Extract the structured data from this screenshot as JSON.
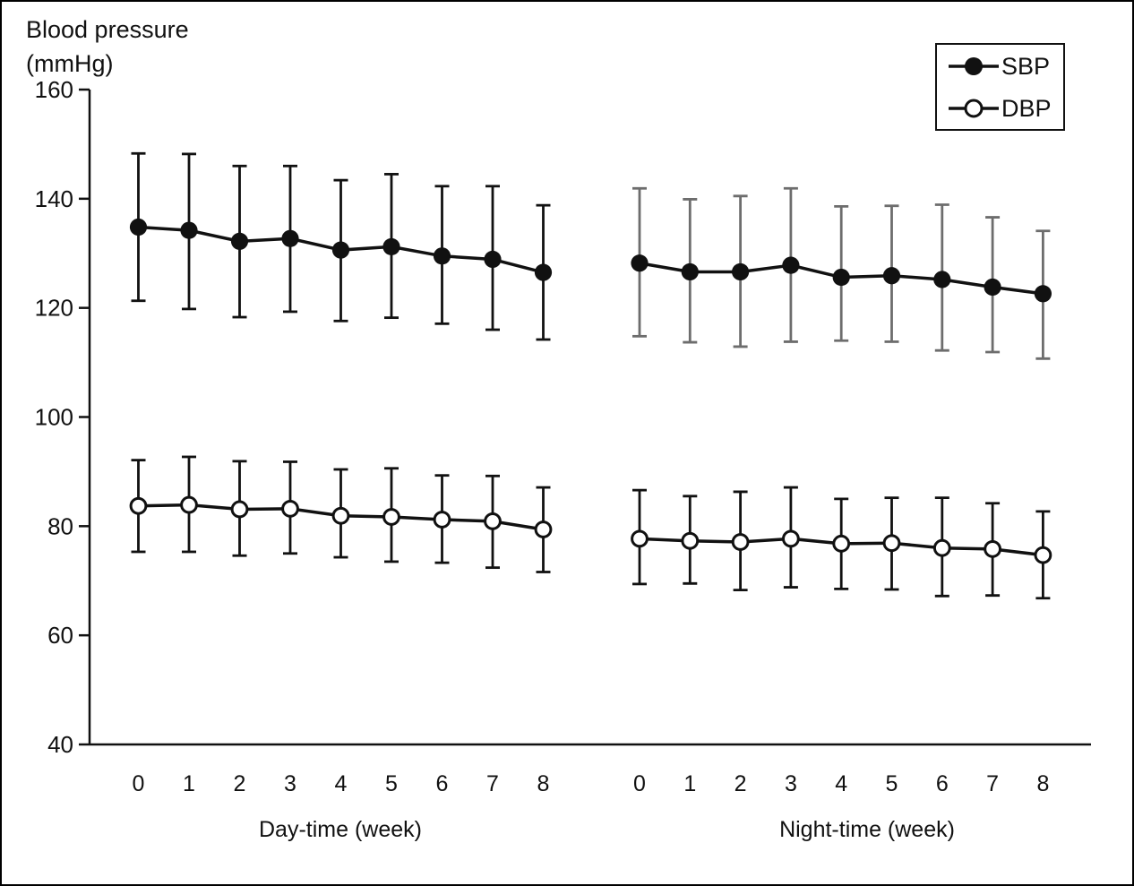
{
  "figure": {
    "title_line1": "Blood pressure",
    "title_line2": "(mmHg)"
  },
  "colors": {
    "axis": "#111111",
    "series_line": "#111111",
    "day_errorbar": "#111111",
    "night_sbp_errorbar": "#6d6d6d",
    "night_dbp_errorbar": "#111111",
    "marker_fill_sbp": "#111111",
    "marker_fill_dbp": "#ffffff",
    "background": "#ffffff"
  },
  "legend": {
    "items": [
      {
        "label": "SBP",
        "marker": "filled-circle"
      },
      {
        "label": "DBP",
        "marker": "open-circle"
      }
    ]
  },
  "chart_data": {
    "type": "line",
    "title": "Blood pressure (mmHg)",
    "ylabel": "Blood pressure (mmHg)",
    "ylim": [
      40,
      160
    ],
    "yticks": [
      160,
      140,
      120,
      100,
      80,
      60,
      40
    ],
    "x_tick_labels": [
      "0",
      "1",
      "2",
      "3",
      "4",
      "5",
      "6",
      "7",
      "8"
    ],
    "grid": false,
    "legend_position": "top-right",
    "error_bars": true,
    "groups": [
      {
        "label": "Day-time (week)",
        "series": [
          {
            "name": "SBP",
            "marker": "filled-circle",
            "errorbar_color_key": "day_errorbar",
            "values": [
              134.8,
              134.2,
              132.2,
              132.7,
              130.6,
              131.2,
              129.5,
              128.9,
              126.5
            ],
            "upper": [
              148.3,
              148.2,
              146.0,
              146.0,
              143.4,
              144.5,
              142.3,
              142.3,
              138.8
            ],
            "lower": [
              121.3,
              119.8,
              118.3,
              119.3,
              117.6,
              118.2,
              117.1,
              116.0,
              114.2
            ]
          },
          {
            "name": "DBP",
            "marker": "open-circle",
            "errorbar_color_key": "day_errorbar",
            "values": [
              83.7,
              83.9,
              83.1,
              83.2,
              81.9,
              81.7,
              81.2,
              80.9,
              79.4
            ],
            "upper": [
              92.1,
              92.7,
              91.9,
              91.8,
              90.4,
              90.6,
              89.3,
              89.2,
              87.1
            ],
            "lower": [
              75.3,
              75.3,
              74.6,
              75.0,
              74.3,
              73.5,
              73.3,
              72.4,
              71.6
            ]
          }
        ]
      },
      {
        "label": "Night-time (week)",
        "series": [
          {
            "name": "SBP",
            "marker": "filled-circle",
            "errorbar_color_key": "night_sbp_errorbar",
            "values": [
              128.2,
              126.6,
              126.6,
              127.8,
              125.6,
              125.9,
              125.2,
              123.8,
              122.6
            ],
            "upper": [
              141.9,
              139.9,
              140.5,
              141.9,
              138.6,
              138.7,
              138.9,
              136.6,
              134.1
            ],
            "lower": [
              114.8,
              113.7,
              112.9,
              113.8,
              114.0,
              113.8,
              112.2,
              111.9,
              110.7
            ]
          },
          {
            "name": "DBP",
            "marker": "open-circle",
            "errorbar_color_key": "night_dbp_errorbar",
            "values": [
              77.7,
              77.3,
              77.1,
              77.7,
              76.8,
              76.9,
              76.0,
              75.8,
              74.7
            ],
            "upper": [
              86.6,
              85.5,
              86.3,
              87.1,
              85.0,
              85.2,
              85.2,
              84.2,
              82.7
            ],
            "lower": [
              69.4,
              69.5,
              68.3,
              68.8,
              68.5,
              68.4,
              67.2,
              67.3,
              66.8
            ]
          }
        ]
      }
    ]
  }
}
